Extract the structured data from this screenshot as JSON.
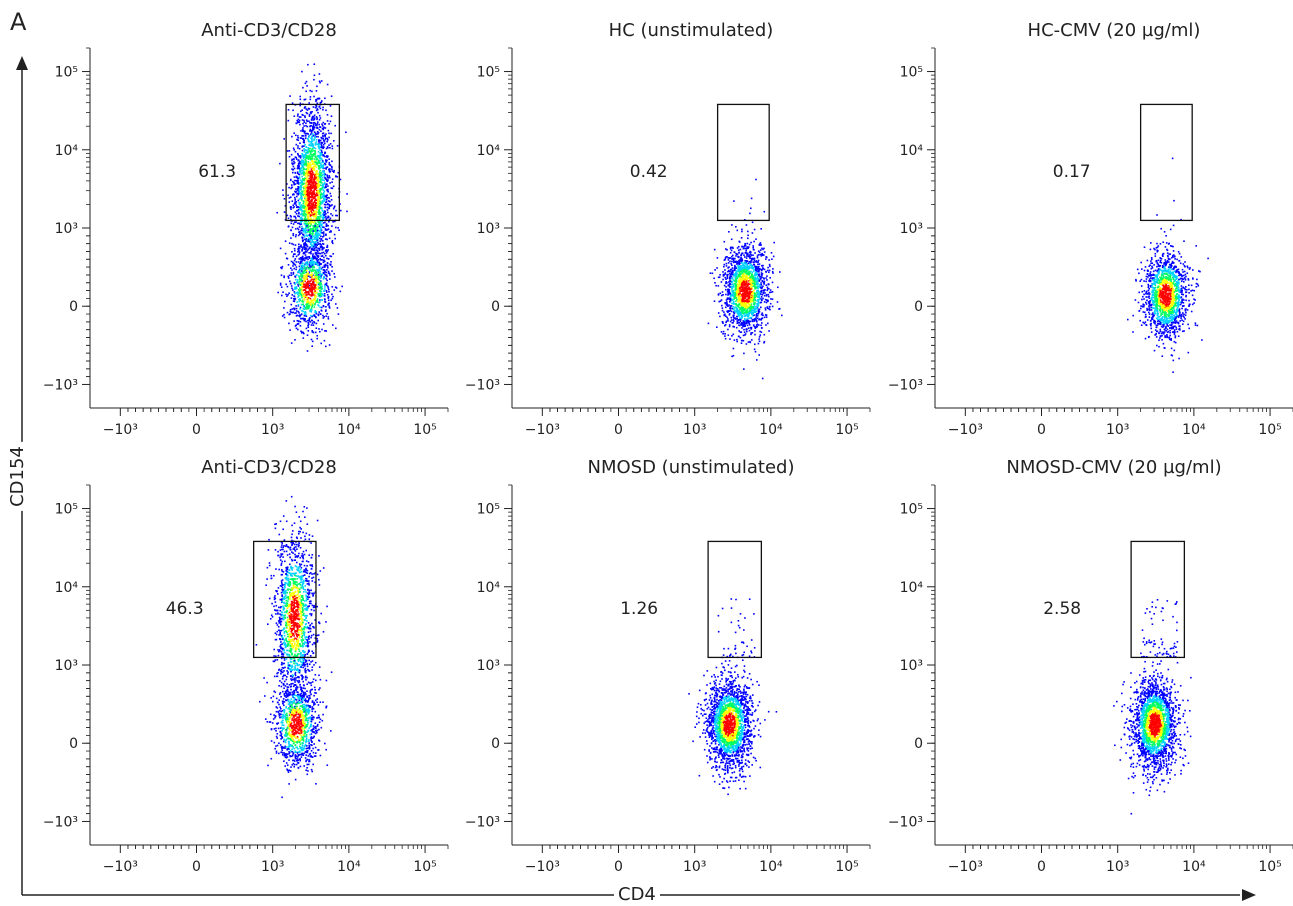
{
  "figure": {
    "panel_letter": "A",
    "x_axis_label": "CD4",
    "y_axis_label": "CD154"
  },
  "chart_data": [
    {
      "type": "scatter",
      "title": "Anti-CD3/CD28",
      "xlabel": "CD4",
      "ylabel": "CD154",
      "x_scale": "biexponential",
      "y_scale": "biexponential",
      "x_ticks": [
        "−10³",
        "0",
        "10³",
        "10⁴",
        "10⁵"
      ],
      "y_ticks": [
        "10⁵",
        "10⁴",
        "10³",
        "0",
        "−10³"
      ],
      "gate": {
        "x_range": [
          1500,
          7500
        ],
        "y_range": [
          1250,
          38000
        ],
        "percent": "61.3"
      },
      "populations": [
        {
          "name": "",
          "x_median": 3200,
          "y_median": 3000,
          "count": 2200
        },
        {
          "name": "",
          "x_median": 3000,
          "y_median": 250,
          "count": 900
        }
      ]
    },
    {
      "type": "scatter",
      "title": "HC (unstimulated)",
      "xlabel": "CD4",
      "ylabel": "CD154",
      "x_scale": "biexponential",
      "y_scale": "biexponential",
      "x_ticks": [
        "−10³",
        "0",
        "10³",
        "10⁴",
        "10⁵"
      ],
      "y_ticks": [
        "10⁵",
        "10⁴",
        "10³",
        "0",
        "−10³"
      ],
      "gate": {
        "x_range": [
          2000,
          9500
        ],
        "y_range": [
          1250,
          38000
        ],
        "percent": "0.42"
      },
      "populations": [
        {
          "name": "",
          "x_median": 4500,
          "y_median": 200,
          "count": 1800
        }
      ]
    },
    {
      "type": "scatter",
      "title": "HC-CMV (20 µg/ml)",
      "xlabel": "CD4",
      "ylabel": "CD154",
      "x_scale": "biexponential",
      "y_scale": "biexponential",
      "x_ticks": [
        "−10³",
        "0",
        "10³",
        "10⁴",
        "10⁵"
      ],
      "y_ticks": [
        "10⁵",
        "10⁴",
        "10³",
        "0",
        "−10³"
      ],
      "gate": {
        "x_range": [
          2000,
          9500
        ],
        "y_range": [
          1250,
          38000
        ],
        "percent": "0.17"
      },
      "populations": [
        {
          "name": "",
          "x_median": 4200,
          "y_median": 150,
          "count": 1500
        }
      ]
    },
    {
      "type": "scatter",
      "title": "Anti-CD3/CD28",
      "xlabel": "CD4",
      "ylabel": "CD154",
      "x_scale": "biexponential",
      "y_scale": "biexponential",
      "x_ticks": [
        "−10³",
        "0",
        "10³",
        "10⁴",
        "10⁵"
      ],
      "y_ticks": [
        "10⁵",
        "10⁴",
        "10³",
        "0",
        "−10³"
      ],
      "gate": {
        "x_range": [
          750,
          3700
        ],
        "y_range": [
          1250,
          38000
        ],
        "percent": "46.3"
      },
      "populations": [
        {
          "name": "",
          "x_median": 1900,
          "y_median": 4000,
          "count": 1500
        },
        {
          "name": "",
          "x_median": 2000,
          "y_median": 250,
          "count": 1000
        }
      ]
    },
    {
      "type": "scatter",
      "title": "NMOSD (unstimulated)",
      "xlabel": "CD4",
      "ylabel": "CD154",
      "x_scale": "biexponential",
      "y_scale": "biexponential",
      "x_ticks": [
        "−10³",
        "0",
        "10³",
        "10⁴",
        "10⁵"
      ],
      "y_ticks": [
        "10⁵",
        "10⁴",
        "10³",
        "0",
        "−10³"
      ],
      "gate": {
        "x_range": [
          1500,
          7500
        ],
        "y_range": [
          1250,
          38000
        ],
        "percent": "1.26"
      },
      "populations": [
        {
          "name": "",
          "x_median": 2800,
          "y_median": 250,
          "count": 2000
        }
      ]
    },
    {
      "type": "scatter",
      "title": "NMOSD-CMV (20 µg/ml)",
      "xlabel": "CD4",
      "ylabel": "CD154",
      "x_scale": "biexponential",
      "y_scale": "biexponential",
      "x_ticks": [
        "−10³",
        "0",
        "10³",
        "10⁴",
        "10⁵"
      ],
      "y_ticks": [
        "10⁵",
        "10⁴",
        "10³",
        "0",
        "−10³"
      ],
      "gate": {
        "x_range": [
          1500,
          7500
        ],
        "y_range": [
          1250,
          38000
        ],
        "percent": "2.58"
      },
      "populations": [
        {
          "name": "",
          "x_median": 3000,
          "y_median": 250,
          "count": 2000
        }
      ]
    }
  ],
  "colors": {
    "density_low": "#0000ff",
    "density_mid1": "#00d0ff",
    "density_mid2": "#00ff60",
    "density_mid3": "#ffff00",
    "density_high": "#ff0000",
    "axis": "#222222",
    "gate": "#111111"
  }
}
